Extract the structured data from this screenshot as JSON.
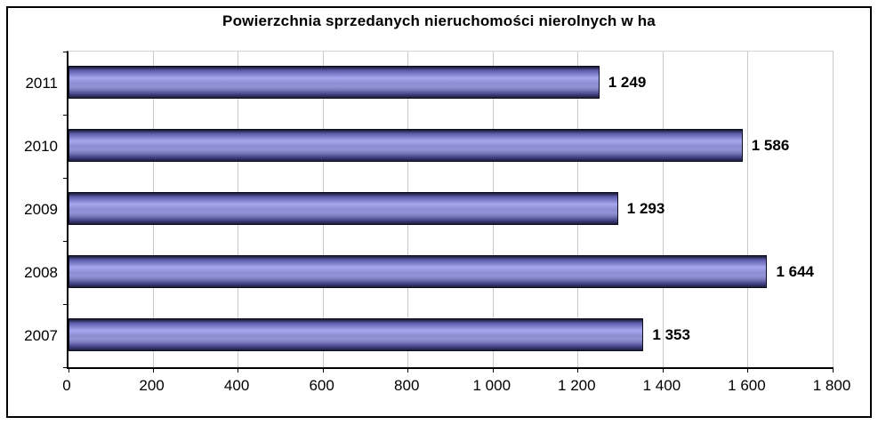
{
  "title": "Powierzchnia sprzedanych nieruchomości nierolnych w ha",
  "chart_data": {
    "type": "bar",
    "orientation": "horizontal",
    "title": "Powierzchnia sprzedanych nieruchomości nierolnych w ha",
    "categories": [
      "2011",
      "2010",
      "2009",
      "2008",
      "2007"
    ],
    "values": [
      1249,
      1586,
      1293,
      1644,
      1353
    ],
    "value_labels": [
      "1 249",
      "1 586",
      "1 293",
      "1 644",
      "1 353"
    ],
    "xlabel": "",
    "ylabel": "",
    "xlim": [
      0,
      1800
    ],
    "x_tick_interval": 200,
    "x_tick_labels": [
      "0",
      "200",
      "400",
      "600",
      "800",
      "1 000",
      "1 200",
      "1 400",
      "1 600",
      "1 800"
    ],
    "grid": true,
    "legend": "none",
    "colors": {
      "bar_highlight": "#a7a7ef",
      "bar_shadow": "#16162e",
      "bar_border": "#0d0d1f",
      "gridline": "#c9c9c9",
      "axis": "#000000",
      "text": "#000000",
      "background": "#ffffff"
    }
  }
}
